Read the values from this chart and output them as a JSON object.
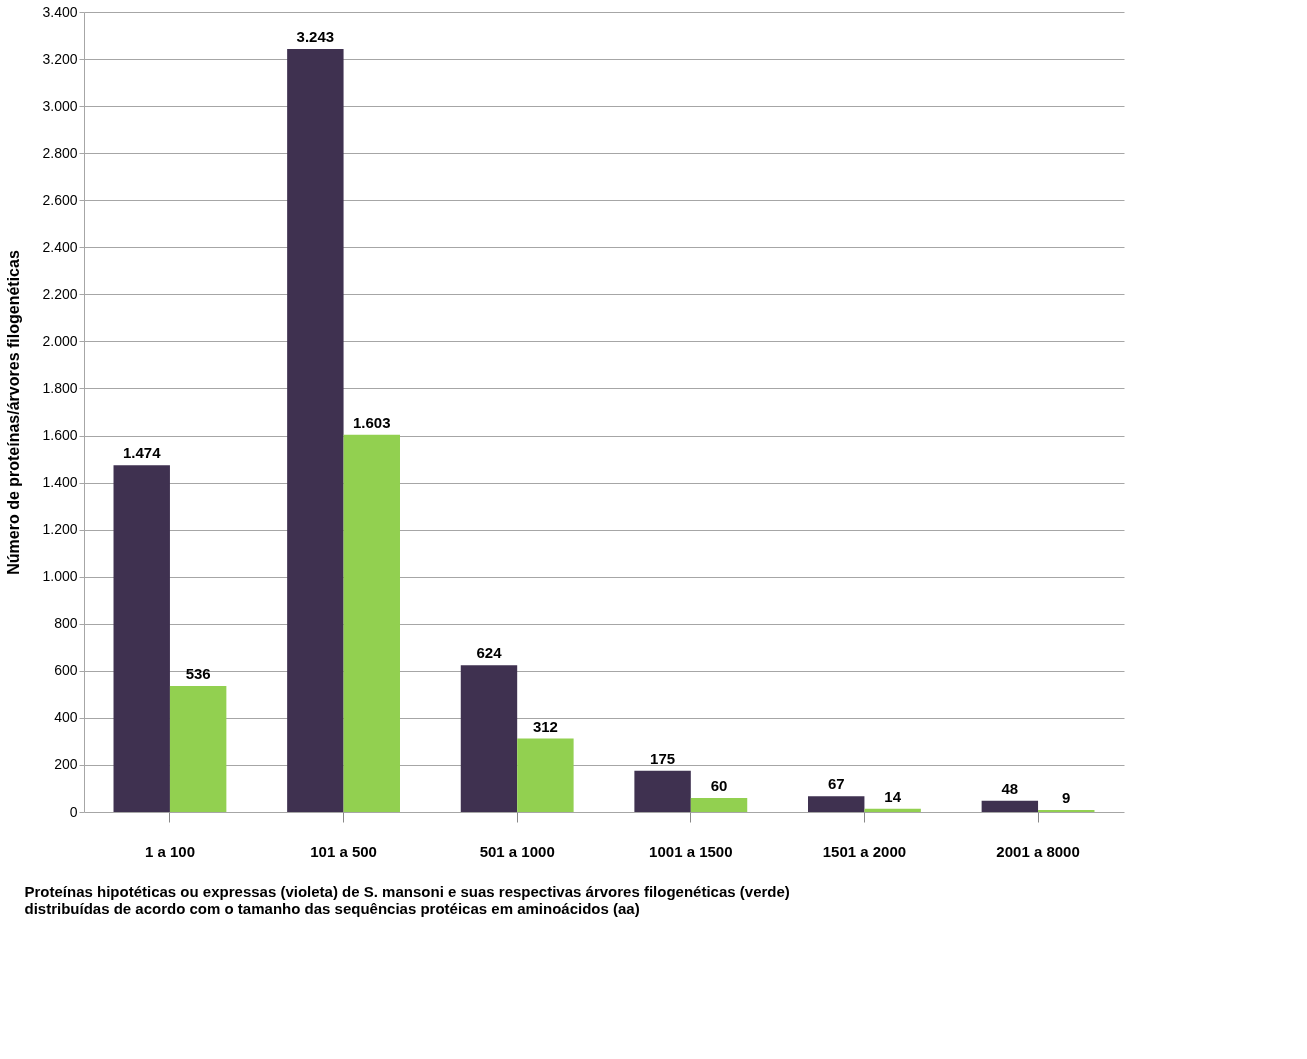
{
  "chart_data": {
    "type": "bar",
    "categories": [
      "1 a 100",
      "101 a 500",
      "501 a 1000",
      "1001 a 1500",
      "1501 a 2000",
      "2001 a 8000"
    ],
    "series": [
      {
        "color": "#3f3150",
        "values": [
          1474,
          3243,
          624,
          175,
          67,
          48
        ],
        "value_labels": [
          "1.474",
          "3.243",
          "624",
          "175",
          "67",
          "48"
        ]
      },
      {
        "color": "#92d050",
        "values": [
          536,
          1603,
          312,
          60,
          14,
          9
        ],
        "value_labels": [
          "536",
          "1.603",
          "312",
          "60",
          "14",
          "9"
        ]
      }
    ],
    "ylabel": "Número de proteínas/árvores filogenéticas",
    "xlabel": "Proteínas hipotéticas ou expressas (violeta) de S. mansoni e suas respectivas árvores filogenéticas (verde) distribuídas de acordo com o tamanho das sequências protéicas em aminoácidos (aa)",
    "ylim": [
      0,
      3400
    ],
    "yticks": [
      0,
      200,
      400,
      600,
      800,
      {
        "value": 1000,
        "label": "1.000"
      },
      {
        "value": 1200,
        "label": "1.200"
      },
      {
        "value": 1400,
        "label": "1.400"
      },
      {
        "value": 1600,
        "label": "1.600"
      },
      {
        "value": 1800,
        "label": "1.800"
      },
      {
        "value": 2000,
        "label": "2.000"
      },
      {
        "value": 2200,
        "label": "2.200"
      },
      {
        "value": 2400,
        "label": "2.400"
      },
      {
        "value": 2600,
        "label": "2.600"
      },
      {
        "value": 2800,
        "label": "2.800"
      },
      {
        "value": 3000,
        "label": "3.000"
      },
      {
        "value": 3200,
        "label": "3.200"
      },
      {
        "value": 3400,
        "label": "3.400"
      }
    ],
    "grid": "y",
    "legend": false
  }
}
